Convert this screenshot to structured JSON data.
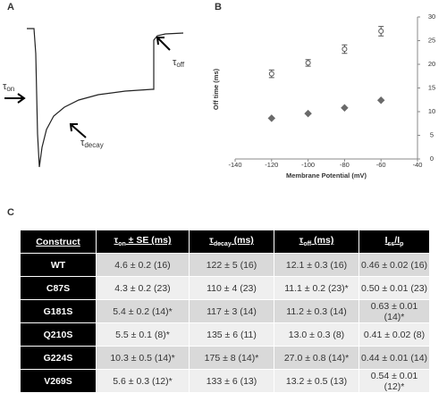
{
  "labels": {
    "a": "A",
    "b": "B",
    "c": "C"
  },
  "trace": {
    "annotations": [
      {
        "symbol": "τ",
        "sub": "on"
      },
      {
        "symbol": "τ",
        "sub": "decay"
      },
      {
        "symbol": "τ",
        "sub": "off"
      }
    ]
  },
  "chart_data": {
    "type": "scatter",
    "x_label": "Membrane Potential (mV)",
    "y_label": "Off time (ms)",
    "x": [
      -120,
      -100,
      -80,
      -60
    ],
    "series": [
      {
        "color": "#555555",
        "marker": "open",
        "values": [
          18,
          20.3,
          23.2,
          27
        ],
        "errors": [
          0.8,
          0.7,
          0.9,
          1
        ]
      },
      {
        "color": "#6a6a6a",
        "marker": "diamond",
        "values": [
          8.6,
          9.6,
          10.8,
          12.4
        ]
      }
    ],
    "xlim": [
      -140,
      -40
    ],
    "ylim": [
      0,
      30
    ],
    "xticks": [
      -140,
      -120,
      -100,
      -80,
      -60,
      -40
    ],
    "yticks": [
      0,
      5,
      10,
      15,
      20,
      25,
      30
    ],
    "y_axis_side": "right"
  },
  "table": {
    "header": [
      [
        {
          "t": "Construct",
          "sub": false
        }
      ],
      [
        {
          "t": "τ",
          "sub": false
        },
        {
          "t": "on",
          "sub": true
        },
        {
          "t": " ± SE (ms)",
          "sub": false
        }
      ],
      [
        {
          "t": "τ",
          "sub": false
        },
        {
          "t": "decay",
          "sub": true
        },
        {
          "t": " (ms)",
          "sub": false
        }
      ],
      [
        {
          "t": "τ",
          "sub": false
        },
        {
          "t": "off",
          "sub": true
        },
        {
          "t": " (ms)",
          "sub": false
        }
      ],
      [
        {
          "t": "I",
          "sub": false
        },
        {
          "t": "ss",
          "sub": true
        },
        {
          "t": "/I",
          "sub": false
        },
        {
          "t": "p",
          "sub": true
        }
      ]
    ],
    "rows": [
      [
        "WT",
        "4.6 ± 0.2 (16)",
        "122 ± 5 (16)",
        "12.1 ± 0.3 (16)",
        "0.46 ± 0.02 (16)"
      ],
      [
        "C87S",
        "4.3 ± 0.2 (23)",
        "110 ± 4 (23)",
        "11.1 ± 0.2 (23)*",
        "0.50 ± 0.01 (23)"
      ],
      [
        "G181S",
        "5.4 ± 0.2 (14)*",
        "117 ± 3 (14)",
        "11.2 ± 0.3 (14)",
        "0.63 ± 0.01 (14)*"
      ],
      [
        "Q210S",
        "5.5 ± 0.1 (8)*",
        "135 ± 6 (11)",
        "13.0 ± 0.3 (8)",
        "0.41 ± 0.02 (8)"
      ],
      [
        "G224S",
        "10.3 ± 0.5 (14)*",
        "175 ± 8 (14)*",
        "27.0 ± 0.8 (14)*",
        "0.44 ± 0.01 (14)"
      ],
      [
        "V269S",
        "5.6 ± 0.3 (12)*",
        "133 ± 6 (13)",
        "13.2 ± 0.5 (13)",
        "0.54 ± 0.01 (12)*"
      ]
    ]
  }
}
